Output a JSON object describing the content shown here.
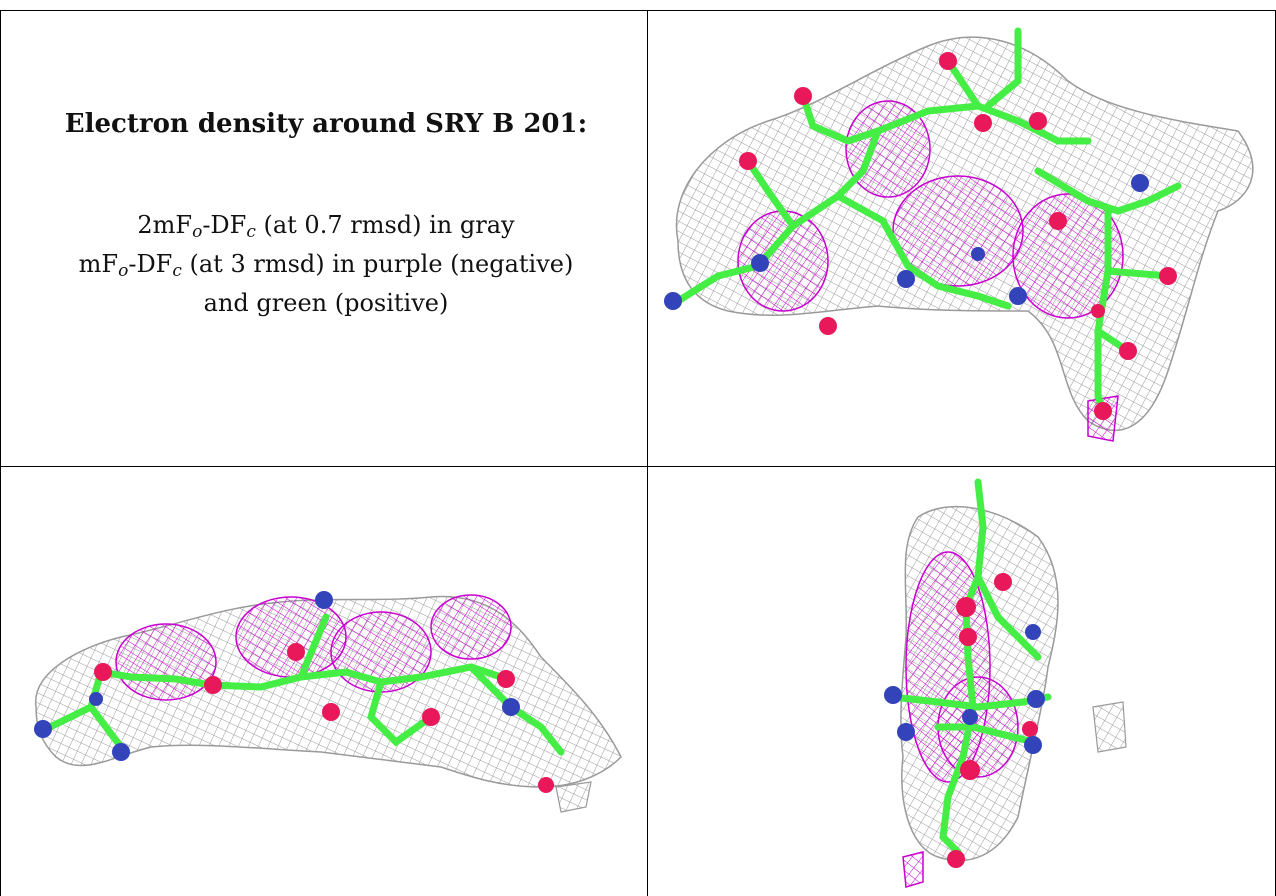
{
  "caption": {
    "title": "Electron density around SRY B 201:",
    "line1": {
      "a": "2mF",
      "sub1": "o",
      "b": "-DF",
      "sub2": "c",
      "c": " (at 0.7 rmsd) in gray"
    },
    "line2": {
      "a": "mF",
      "sub1": "o",
      "b": "-DF",
      "sub2": "c",
      "c": " (at 3 rmsd) in purple (negative)"
    },
    "line3": "and green (positive)"
  },
  "colors": {
    "mesh_gray": "#9a9a9a",
    "mesh_purple": "#c800d0",
    "carbon": "#44ee44",
    "oxygen": "#e8185a",
    "nitrogen": "#3344bb"
  },
  "panels": [
    "density-view-top-right",
    "density-view-bottom-left",
    "density-view-bottom-right"
  ]
}
